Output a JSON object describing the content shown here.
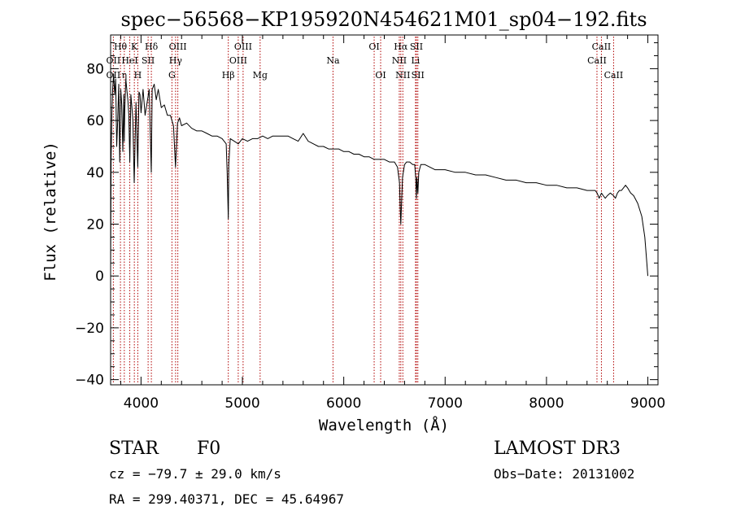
{
  "chart_data": {
    "type": "line",
    "title": "spec−56568−KP195920N454621M01_sp04−192.fits",
    "xlabel": "Wavelength (Å)",
    "ylabel": "Flux (relative)",
    "xlim": [
      3700,
      9100
    ],
    "ylim": [
      -42,
      93
    ],
    "xticks": [
      4000,
      5000,
      6000,
      7000,
      8000,
      9000
    ],
    "yticks": [
      -40,
      -20,
      0,
      20,
      40,
      60,
      80
    ],
    "color": "#000000",
    "series": [
      {
        "name": "flux",
        "x": [
          3700,
          3705,
          3712,
          3720,
          3730,
          3740,
          3750,
          3760,
          3770,
          3780,
          3790,
          3800,
          3810,
          3820,
          3830,
          3835,
          3840,
          3850,
          3860,
          3870,
          3880,
          3889,
          3900,
          3910,
          3920,
          3933,
          3950,
          3968,
          3980,
          3990,
          4000,
          4020,
          4040,
          4060,
          4080,
          4101,
          4110,
          4130,
          4150,
          4170,
          4200,
          4230,
          4260,
          4290,
          4320,
          4340,
          4360,
          4380,
          4400,
          4450,
          4500,
          4550,
          4600,
          4650,
          4700,
          4750,
          4800,
          4840,
          4850,
          4861,
          4866,
          4880,
          4920,
          4960,
          5000,
          5050,
          5100,
          5150,
          5200,
          5250,
          5300,
          5350,
          5400,
          5450,
          5500,
          5550,
          5600,
          5650,
          5700,
          5750,
          5800,
          5850,
          5900,
          5950,
          6000,
          6050,
          6100,
          6150,
          6200,
          6250,
          6300,
          6350,
          6400,
          6450,
          6500,
          6530,
          6550,
          6558,
          6563,
          6570,
          6580,
          6600,
          6620,
          6650,
          6680,
          6700,
          6710,
          6717,
          6722,
          6731,
          6740,
          6760,
          6800,
          6850,
          6900,
          6950,
          7000,
          7100,
          7200,
          7300,
          7400,
          7500,
          7600,
          7700,
          7800,
          7900,
          8000,
          8100,
          8200,
          8300,
          8400,
          8480,
          8500,
          8520,
          8542,
          8560,
          8580,
          8600,
          8630,
          8662,
          8680,
          8700,
          8720,
          8740,
          8760,
          8780,
          8800,
          8830,
          8860,
          8900,
          8940,
          8970,
          8990,
          9000
        ],
        "y": [
          2,
          45,
          62,
          72,
          78,
          70,
          76,
          50,
          60,
          74,
          44,
          72,
          66,
          48,
          70,
          52,
          64,
          76,
          72,
          68,
          62,
          44,
          70,
          65,
          60,
          36,
          67,
          42,
          71,
          70,
          63,
          72,
          62,
          67,
          72,
          40,
          72,
          74,
          68,
          72,
          65,
          66,
          62,
          62,
          58,
          42,
          59,
          61,
          58,
          59,
          57,
          56,
          56,
          55,
          54,
          54,
          53,
          51,
          40,
          22,
          43,
          53,
          52,
          51,
          53,
          52,
          53,
          53,
          54,
          53,
          54,
          54,
          54,
          54,
          53,
          52,
          55,
          52,
          51,
          50,
          50,
          49,
          49,
          49,
          48,
          48,
          47,
          47,
          46,
          46,
          45,
          45,
          45,
          44,
          44,
          42,
          36,
          25,
          20,
          28,
          38,
          43,
          44,
          44,
          43,
          43,
          38,
          30,
          38,
          32,
          40,
          43,
          43,
          42,
          41,
          41,
          41,
          40,
          40,
          39,
          39,
          38,
          37,
          37,
          36,
          36,
          35,
          35,
          34,
          34,
          33,
          33,
          32,
          30,
          32,
          31,
          30,
          31,
          32,
          31,
          30,
          32,
          33,
          33,
          34,
          35,
          34,
          32,
          31,
          28,
          23,
          15,
          5,
          0
        ]
      }
    ],
    "lines": [
      {
        "label": "OII",
        "x": 3727,
        "row": 2
      },
      {
        "label": "Hθ",
        "x": 3797,
        "row": 1
      },
      {
        "label": "OII",
        "x": 3727,
        "row": 3
      },
      {
        "label": "HeI",
        "x": 3889,
        "row": 2
      },
      {
        "label": "η",
        "x": 3835,
        "row": 3
      },
      {
        "label": "K",
        "x": 3934,
        "row": 1
      },
      {
        "label": "SII",
        "x": 4070,
        "row": 2
      },
      {
        "label": "H",
        "x": 3968,
        "row": 3
      },
      {
        "label": "Hδ",
        "x": 4102,
        "row": 1
      },
      {
        "label": "OIII",
        "x": 4363,
        "row": 1
      },
      {
        "label": "Hγ",
        "x": 4341,
        "row": 2
      },
      {
        "label": "G",
        "x": 4305,
        "row": 3
      },
      {
        "label": "Hβ",
        "x": 4861,
        "row": 3
      },
      {
        "label": "OIII",
        "x": 5007,
        "row": 1
      },
      {
        "label": "OIII",
        "x": 4959,
        "row": 2
      },
      {
        "label": "Mg",
        "x": 5175,
        "row": 3
      },
      {
        "label": "Na",
        "x": 5894,
        "row": 2
      },
      {
        "label": "OI",
        "x": 6300,
        "row": 1
      },
      {
        "label": "OI",
        "x": 6364,
        "row": 3
      },
      {
        "label": "Hα",
        "x": 6563,
        "row": 1
      },
      {
        "label": "SII",
        "x": 6717,
        "row": 1
      },
      {
        "label": "NII",
        "x": 6548,
        "row": 2
      },
      {
        "label": "Li",
        "x": 6708,
        "row": 2
      },
      {
        "label": "NII",
        "x": 6583,
        "row": 3
      },
      {
        "label": "SII",
        "x": 6731,
        "row": 3
      },
      {
        "label": "CaII",
        "x": 8542,
        "row": 1
      },
      {
        "label": "CaII",
        "x": 8498,
        "row": 2
      },
      {
        "label": "CaII",
        "x": 8662,
        "row": 3
      }
    ]
  },
  "info": {
    "object_class": "STAR",
    "subclass": "F0",
    "survey": "LAMOST DR3",
    "cz": "cz = −79.7 ± 29.0 km/s",
    "obs_date": "Obs−Date: 20131002",
    "coords": "RA = 299.40371, DEC =  45.64967"
  }
}
